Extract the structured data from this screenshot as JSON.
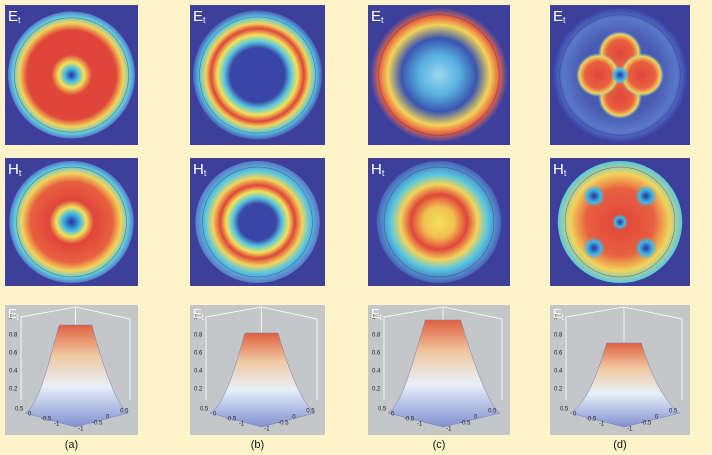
{
  "panels": [
    {
      "caption": "(a)",
      "labels": [
        {
          "letter": "E",
          "sub": "t"
        },
        {
          "letter": "H",
          "sub": "t"
        },
        {
          "letter": "E",
          "sub": "t"
        }
      ]
    },
    {
      "caption": "(b)",
      "labels": [
        {
          "letter": "E",
          "sub": "t"
        },
        {
          "letter": "H",
          "sub": "t"
        },
        {
          "letter": "E",
          "sub": "t"
        }
      ]
    },
    {
      "caption": "(c)",
      "labels": [
        {
          "letter": "E",
          "sub": "t"
        },
        {
          "letter": "H",
          "sub": "t"
        },
        {
          "letter": "E",
          "sub": "t"
        }
      ]
    },
    {
      "caption": "(d)",
      "labels": [
        {
          "letter": "E",
          "sub": "t"
        },
        {
          "letter": "H",
          "sub": "t"
        },
        {
          "letter": "E",
          "sub": "t"
        }
      ]
    }
  ],
  "axis3d": {
    "zticks": [
      "1",
      "0.8",
      "0.6",
      "0.4",
      "0.2"
    ],
    "xticks": [
      "0.5",
      "0",
      "-0.5",
      "-1"
    ],
    "yticks": [
      "-1",
      "-0.5",
      "0",
      "0.5"
    ]
  }
}
